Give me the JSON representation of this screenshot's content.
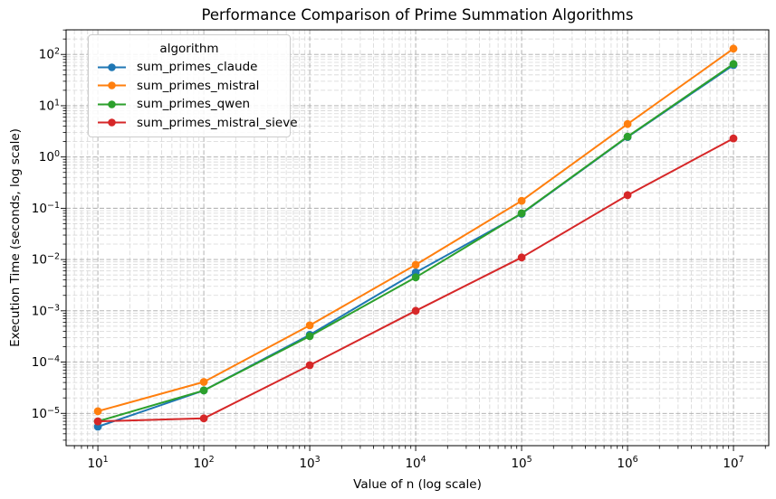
{
  "chart_data": {
    "type": "line",
    "title": "Performance Comparison of Prime Summation Algorithms",
    "xlabel": "Value of n (log scale)",
    "ylabel": "Execution Time (seconds, log scale)",
    "x_scale": "log",
    "y_scale": "log",
    "grid": "major and minor, dashed gray",
    "xlim": [
      5.0,
      21500000
    ],
    "ylim": [
      2.3e-06,
      300
    ],
    "x": [
      10,
      100,
      1000,
      10000,
      100000,
      1000000,
      10000000
    ],
    "x_ticks": {
      "base": "10",
      "exponents": [
        1,
        2,
        3,
        4,
        5,
        6,
        7
      ]
    },
    "y_ticks": {
      "base": "10",
      "exponents": [
        2,
        1,
        0,
        -1,
        -2,
        -3,
        -4,
        -5
      ]
    },
    "legend": {
      "title": "algorithm",
      "position": "upper left"
    },
    "series": [
      {
        "name": "sum_primes_claude",
        "color": "#1f77b4",
        "values": [
          5.5e-06,
          2.8e-05,
          0.00034,
          0.0056,
          0.078,
          2.45,
          62
        ]
      },
      {
        "name": "sum_primes_mistral",
        "color": "#ff7f0e",
        "values": [
          1.1e-05,
          4.1e-05,
          0.00052,
          0.0079,
          0.14,
          4.4,
          130
        ]
      },
      {
        "name": "sum_primes_qwen",
        "color": "#2ca02c",
        "values": [
          7e-06,
          2.8e-05,
          0.00032,
          0.0045,
          0.08,
          2.5,
          65
        ]
      },
      {
        "name": "sum_primes_mistral_sieve",
        "color": "#d62728",
        "values": [
          7e-06,
          8e-06,
          8.7e-05,
          0.001,
          0.011,
          0.18,
          2.3
        ]
      }
    ],
    "style": {
      "grid_major_color": "#a9a9a9",
      "grid_minor_color": "#d6d6d6",
      "spine_color": "#000000",
      "background": "#ffffff"
    }
  }
}
